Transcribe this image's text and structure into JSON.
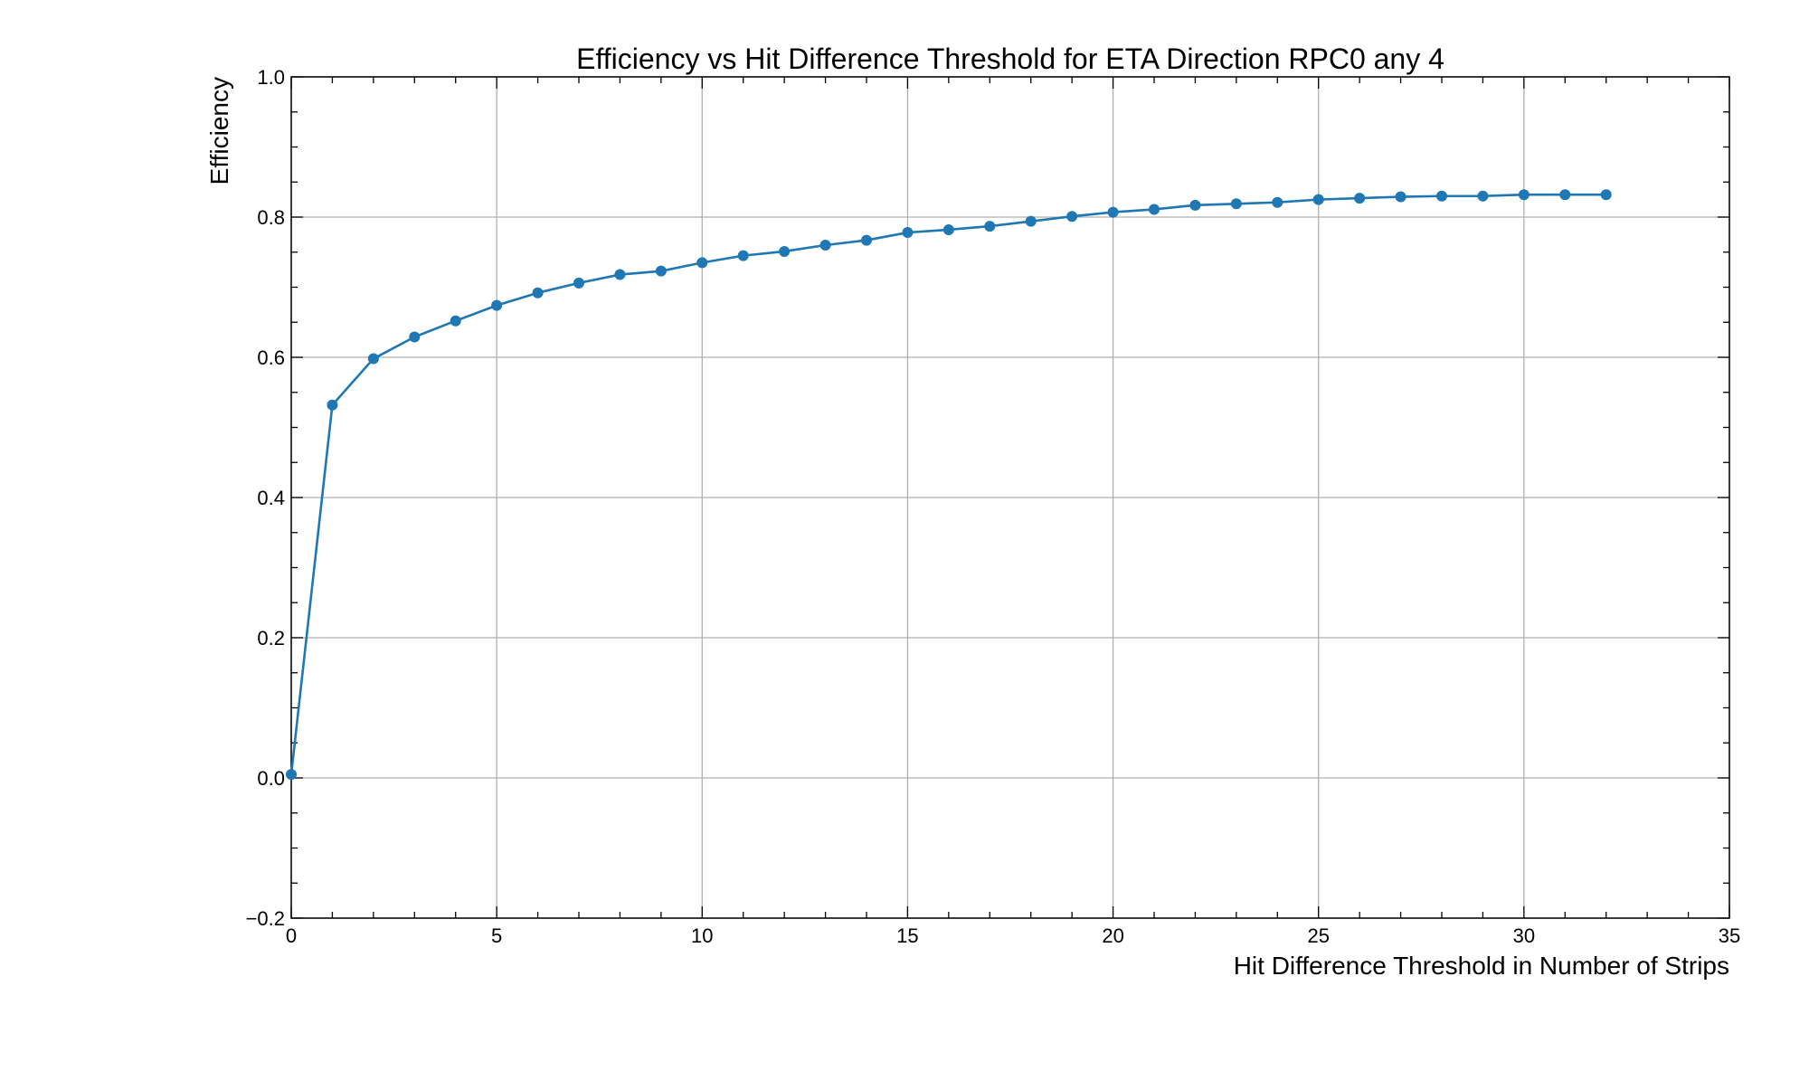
{
  "chart_data": {
    "type": "line",
    "title": "Efficiency vs Hit Difference Threshold for ETA Direction RPC0 any 4",
    "xlabel": "Hit Difference Threshold in Number of Strips",
    "ylabel": "Efficiency",
    "xlim": [
      0,
      35
    ],
    "ylim": [
      -0.2,
      1.0
    ],
    "x_ticks": [
      0,
      5,
      10,
      15,
      20,
      25,
      30,
      35
    ],
    "x_tick_labels": [
      "0",
      "5",
      "10",
      "15",
      "20",
      "25",
      "30",
      "35"
    ],
    "y_ticks": [
      -0.2,
      0.0,
      0.2,
      0.4,
      0.6,
      0.8,
      1.0
    ],
    "y_tick_labels": [
      "−0.2",
      "0.0",
      "0.2",
      "0.4",
      "0.6",
      "0.8",
      "1.0"
    ],
    "grid": true,
    "marker": "circle",
    "color": "#1f77b4",
    "series": [
      {
        "x": [
          0,
          1,
          2,
          3,
          4,
          5,
          6,
          7,
          8,
          9,
          10,
          11,
          12,
          13,
          14,
          15,
          16,
          17,
          18,
          19,
          20,
          21,
          22,
          23,
          24,
          25,
          26,
          27,
          28,
          29,
          30,
          31,
          32
        ],
        "y": [
          0.005,
          0.532,
          0.598,
          0.629,
          0.652,
          0.674,
          0.692,
          0.706,
          0.718,
          0.723,
          0.735,
          0.745,
          0.751,
          0.76,
          0.767,
          0.778,
          0.782,
          0.787,
          0.794,
          0.801,
          0.807,
          0.811,
          0.817,
          0.819,
          0.821,
          0.825,
          0.827,
          0.829,
          0.83,
          0.83,
          0.832,
          0.832,
          0.832
        ]
      }
    ]
  }
}
